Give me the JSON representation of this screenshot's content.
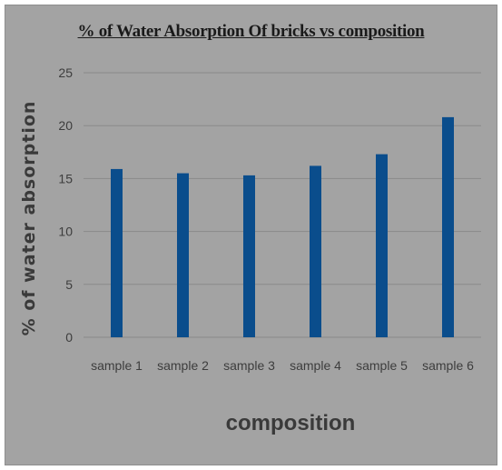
{
  "chart_data": {
    "type": "bar",
    "title": "% of  Water Absorption Of bricks vs composition",
    "xlabel": "composition",
    "ylabel": "% of water absorption",
    "categories": [
      "sample 1",
      "sample 2",
      "sample 3",
      "sample 4",
      "sample 5",
      "sample 6"
    ],
    "values": [
      15.9,
      15.5,
      15.3,
      16.2,
      17.3,
      20.8
    ],
    "ylim": [
      0,
      25
    ],
    "yticks": [
      0,
      5,
      10,
      15,
      20,
      25
    ],
    "grid": true,
    "legend": "none",
    "bar_color": "#0a4d8c",
    "background_color": "#a3a3a3"
  }
}
